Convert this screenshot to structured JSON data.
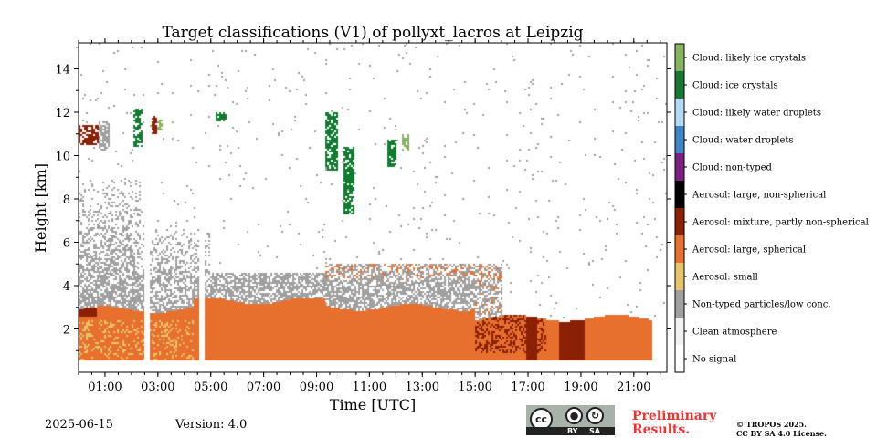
{
  "chart_data": {
    "type": "heatmap",
    "title": "Target classifications (V1) of pollyxt_lacros at Leipzig",
    "xlabel": "Time [UTC]",
    "ylabel": "Height [km]",
    "xlim": [
      "00:00",
      "22:15"
    ],
    "ylim": [
      0,
      15.2
    ],
    "x_ticks": [
      "01:00",
      "03:00",
      "05:00",
      "07:00",
      "09:00",
      "11:00",
      "13:00",
      "15:00",
      "17:00",
      "19:00",
      "21:00"
    ],
    "y_ticks": [
      "2",
      "4",
      "6",
      "8",
      "10",
      "12",
      "14"
    ],
    "legend_position": "right colorbar",
    "classes": [
      {
        "label": "No signal",
        "color": "#ffffff"
      },
      {
        "label": "Clean atmosphere",
        "color": "#f2f2f2"
      },
      {
        "label": "Non-typed particles/low conc.",
        "color": "#a0a0a0"
      },
      {
        "label": "Aerosol: small",
        "color": "#e4c56a"
      },
      {
        "label": "Aerosol: large, spherical",
        "color": "#e8702e"
      },
      {
        "label": "Aerosol: mixture, partly non-spherical",
        "color": "#8a2005"
      },
      {
        "label": "Aerosol: large, non-spherical",
        "color": "#000000"
      },
      {
        "label": "Cloud: non-typed",
        "color": "#7d1f80"
      },
      {
        "label": "Cloud: water droplets",
        "color": "#3a86c6"
      },
      {
        "label": "Cloud: likely water droplets",
        "color": "#b4d9f2"
      },
      {
        "label": "Cloud: ice crystals",
        "color": "#147a32"
      },
      {
        "label": "Cloud: likely ice crystals",
        "color": "#86b35e"
      }
    ]
  },
  "footer": {
    "date": "2025-06-15",
    "version": "Version: 4.0",
    "preliminary_line1": "Preliminary",
    "preliminary_line2": "Results.",
    "copyright_line1": "© TROPOS 2025.",
    "copyright_line2": "CC BY SA 4.0 License."
  },
  "license_badge": {
    "cc": "cc",
    "by": "BY",
    "sa": "SA",
    "icons": [
      "cc-icon",
      "by-person-icon",
      "sa-share-icon"
    ]
  }
}
